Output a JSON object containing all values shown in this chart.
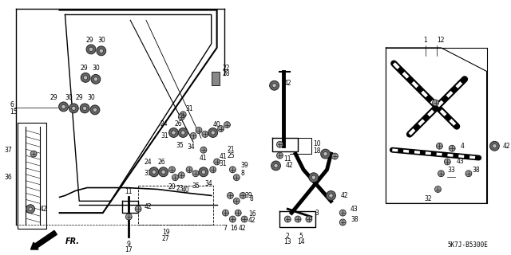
{
  "bg_color": "#ffffff",
  "line_color": "#000000",
  "text_color": "#000000",
  "diagram_code": "5K7J-B5300E",
  "fig_width": 6.4,
  "fig_height": 3.2,
  "dpi": 100,
  "font_size": 5.5
}
